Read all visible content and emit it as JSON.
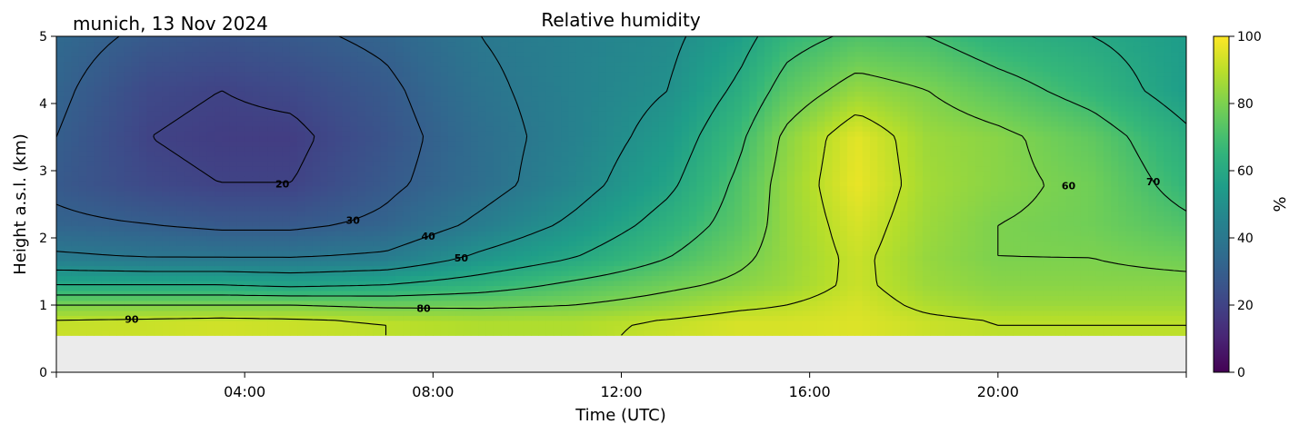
{
  "chart_data": {
    "type": "heatmap",
    "title": "Relative humidity",
    "subtitle": "munich, 13 Nov 2024",
    "xlabel": "Time (UTC)",
    "ylabel": "Height a.s.l. (km)",
    "xlim_hours": [
      0,
      24
    ],
    "x_ticks": [
      {
        "hour": 4,
        "label": "04:00"
      },
      {
        "hour": 8,
        "label": "08:00"
      },
      {
        "hour": 12,
        "label": "12:00"
      },
      {
        "hour": 16,
        "label": "16:00"
      },
      {
        "hour": 20,
        "label": "20:00"
      }
    ],
    "ylim": [
      0,
      5
    ],
    "y_ticks": [
      "0",
      "1",
      "2",
      "3",
      "4",
      "5"
    ],
    "data_bottom_km": 0.55,
    "missing_color": "#ebebeb",
    "colorbar": {
      "label": "%",
      "range": [
        0,
        100
      ],
      "ticks": [
        "0",
        "20",
        "40",
        "60",
        "80",
        "100"
      ],
      "colormap": "viridis"
    },
    "contour_levels": [
      20,
      30,
      40,
      50,
      60,
      70,
      80,
      90
    ],
    "contour_labels": [
      "20",
      "30",
      "40",
      "50",
      "60",
      "70",
      "80",
      "90"
    ],
    "times_h": [
      0,
      2,
      3.5,
      5,
      7,
      9,
      11,
      13,
      14.5,
      15.5,
      17,
      18.5,
      20,
      22,
      24
    ],
    "heights_km": [
      0.55,
      0.75,
      1.0,
      1.3,
      1.7,
      2.2,
      2.8,
      3.5,
      4.2,
      5.0
    ],
    "rh_values": [
      [
        92,
        92,
        93,
        92,
        90,
        88,
        88,
        92,
        94,
        94,
        95,
        92,
        90,
        90,
        90
      ],
      [
        91,
        92,
        93,
        92,
        90,
        88,
        88,
        91,
        94,
        94,
        95,
        92,
        90,
        90,
        90
      ],
      [
        80,
        80,
        80,
        80,
        78,
        78,
        80,
        84,
        88,
        90,
        94,
        88,
        85,
        85,
        85
      ],
      [
        60,
        60,
        60,
        58,
        60,
        65,
        72,
        78,
        82,
        85,
        92,
        85,
        82,
        82,
        82
      ],
      [
        42,
        40,
        40,
        40,
        42,
        52,
        60,
        70,
        78,
        84,
        92,
        84,
        80,
        80,
        78
      ],
      [
        32,
        30,
        28,
        28,
        32,
        42,
        52,
        64,
        74,
        84,
        94,
        85,
        80,
        78,
        72
      ],
      [
        28,
        22,
        20,
        20,
        28,
        36,
        46,
        58,
        72,
        84,
        97,
        86,
        82,
        78,
        66
      ],
      [
        30,
        20,
        18,
        18,
        26,
        36,
        44,
        54,
        68,
        82,
        96,
        85,
        82,
        75,
        62
      ],
      [
        32,
        22,
        20,
        22,
        28,
        38,
        44,
        50,
        62,
        74,
        84,
        80,
        74,
        66,
        55
      ],
      [
        34,
        28,
        26,
        28,
        32,
        40,
        44,
        48,
        56,
        66,
        72,
        70,
        64,
        60,
        55
      ]
    ]
  }
}
